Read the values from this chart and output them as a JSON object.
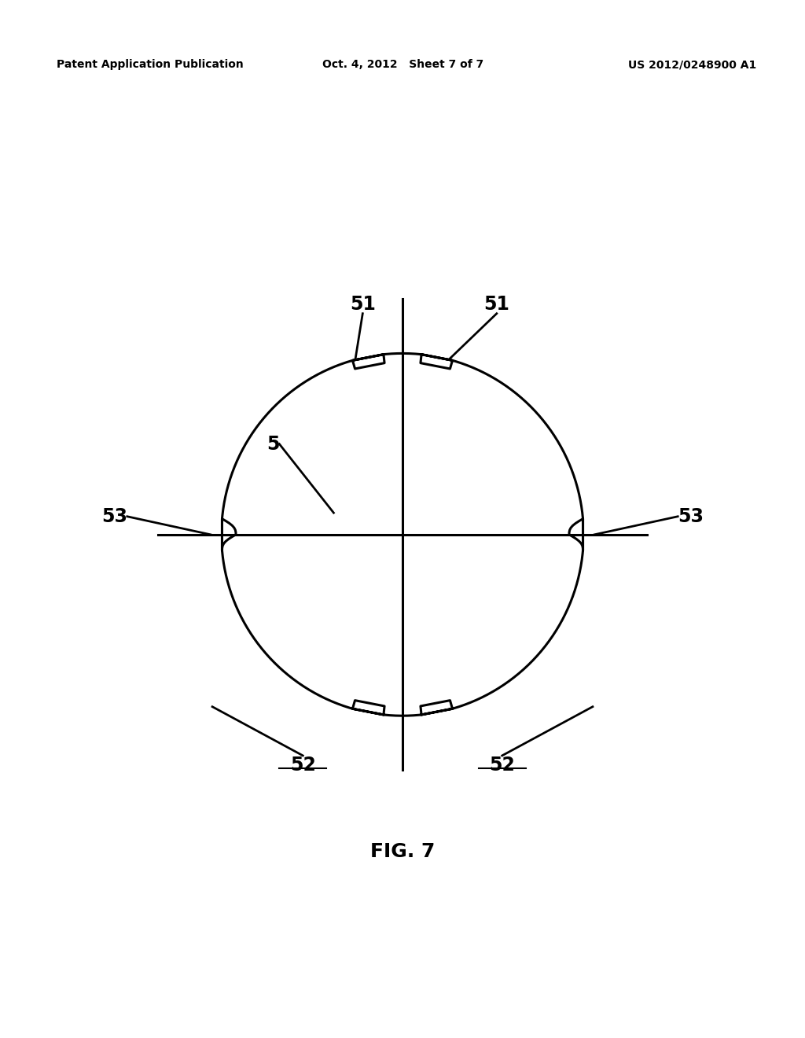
{
  "title": "FIG. 7",
  "header_left": "Patent Application Publication",
  "header_center": "Oct. 4, 2012   Sheet 7 of 7",
  "header_right": "US 2012/0248900 A1",
  "bg_color": "#ffffff",
  "line_color": "#000000",
  "fig_label": "FIG. 7",
  "label_5": "5",
  "label_51": "51",
  "label_52": "52",
  "label_53": "53"
}
